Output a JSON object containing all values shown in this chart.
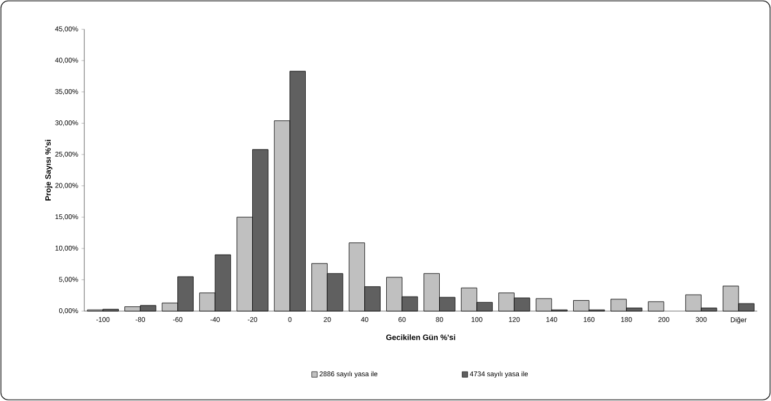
{
  "chart_data": {
    "type": "bar",
    "xlabel": "Gecikilen Gün %'si",
    "ylabel": "Proje Sayısı %'si",
    "categories": [
      "-100",
      "-80",
      "-60",
      "-40",
      "-20",
      "0",
      "20",
      "40",
      "60",
      "80",
      "100",
      "120",
      "140",
      "160",
      "180",
      "200",
      "300",
      "Diğer"
    ],
    "series": [
      {
        "name": "2886 sayılı yasa ile",
        "color": "#c0c0c0",
        "values": [
          0.2,
          0.7,
          1.3,
          2.9,
          15.0,
          30.4,
          7.6,
          10.9,
          5.4,
          6.0,
          3.7,
          2.9,
          2.0,
          1.7,
          1.9,
          1.5,
          2.6,
          4.0
        ]
      },
      {
        "name": "4734 sayılı yasa ile",
        "color": "#606060",
        "values": [
          0.3,
          0.9,
          5.5,
          9.0,
          25.8,
          38.3,
          6.0,
          3.9,
          2.3,
          2.2,
          1.4,
          2.1,
          0.2,
          0.2,
          0.5,
          null,
          0.5,
          1.2
        ]
      }
    ],
    "ylim": [
      0,
      45
    ],
    "yticks": [
      {
        "value": 0,
        "label": "0,00%"
      },
      {
        "value": 5,
        "label": "5,00%"
      },
      {
        "value": 10,
        "label": "10,00%"
      },
      {
        "value": 15,
        "label": "15,00%"
      },
      {
        "value": 20,
        "label": "20,00%"
      },
      {
        "value": 25,
        "label": "25,00%"
      },
      {
        "value": 30,
        "label": "30,00%"
      },
      {
        "value": 35,
        "label": "35,00%"
      },
      {
        "value": 40,
        "label": "40,00%"
      },
      {
        "value": 45,
        "label": "45,00%"
      }
    ],
    "grid": false,
    "legend": "bottom"
  }
}
